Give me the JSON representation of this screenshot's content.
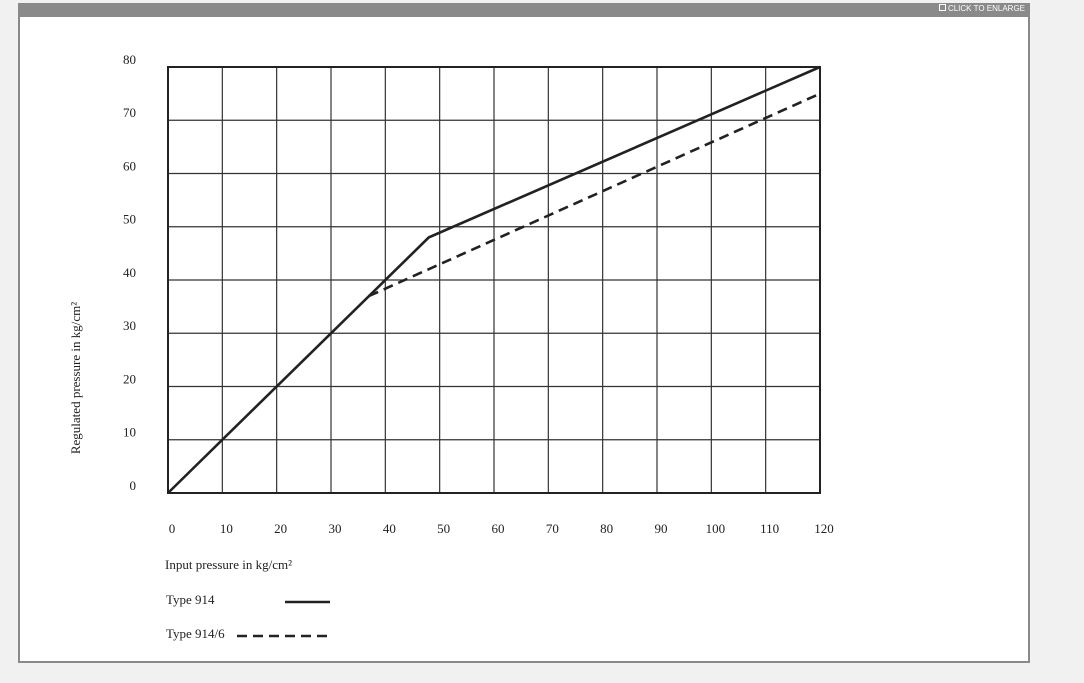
{
  "ui": {
    "enlarge_label": "CLICK TO ENLARGE"
  },
  "chart_data": {
    "type": "line",
    "x_label": "Input pressure in kg/cm²",
    "y_label": "Regulated pressure in kg/cm²",
    "xlim": [
      0,
      120
    ],
    "ylim": [
      0,
      80
    ],
    "xticks": [
      0,
      10,
      20,
      30,
      40,
      50,
      60,
      70,
      80,
      90,
      100,
      110,
      120
    ],
    "yticks": [
      0,
      10,
      20,
      30,
      40,
      50,
      60,
      70,
      80
    ],
    "grid": true,
    "series": [
      {
        "name": "Type 914",
        "color": "#222222",
        "style": "solid",
        "x": [
          0,
          48,
          120
        ],
        "values": [
          0,
          48,
          80
        ]
      },
      {
        "name": "Type 914/6",
        "color": "#222222",
        "style": "dashed",
        "x": [
          37,
          120
        ],
        "values": [
          37,
          75
        ]
      }
    ]
  }
}
